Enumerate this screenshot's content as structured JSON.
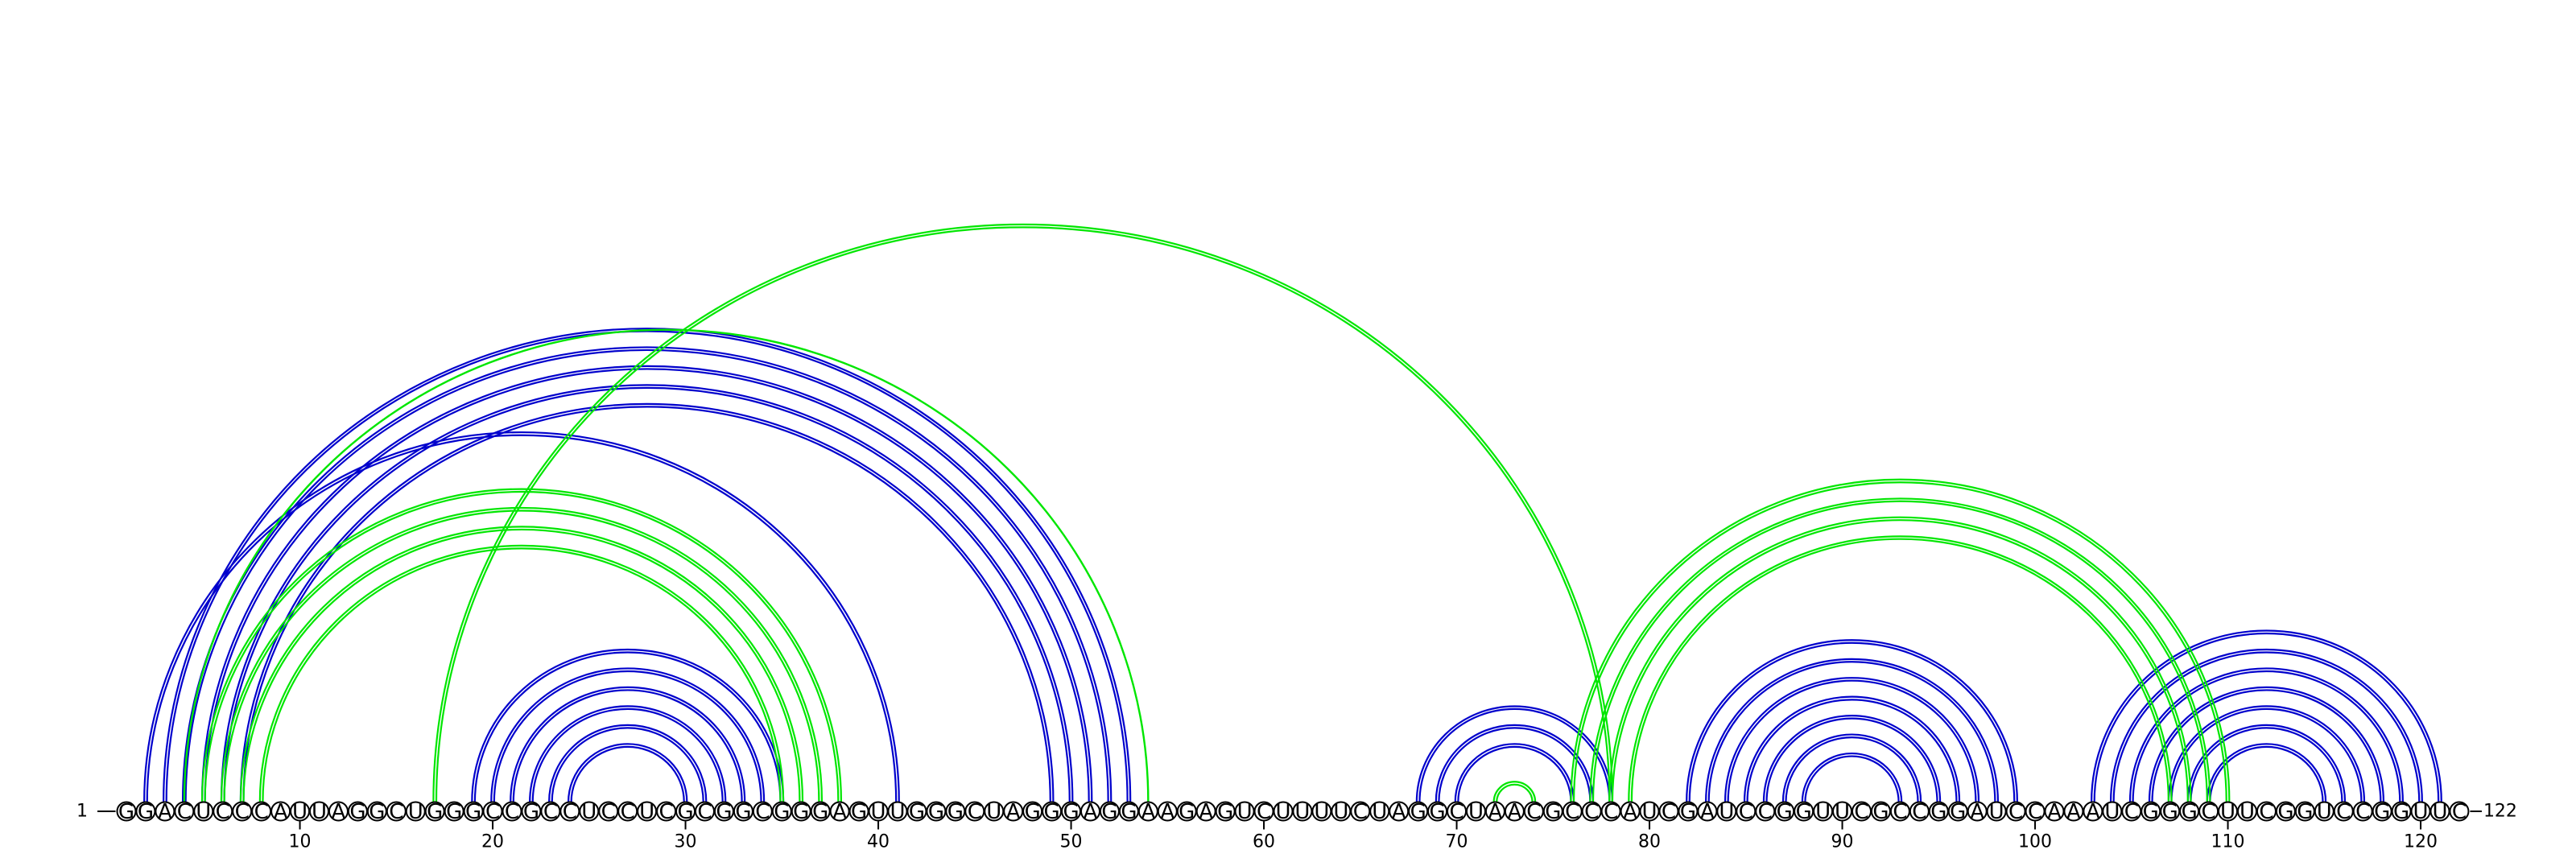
{
  "diagram": {
    "sequence": "GGACUCCCAUUAGGCUGGGCCGCCUCCUCGCGGCGGGAGUUGGGCUAGGGAGGAAGAGUCUUUUCUAGGCUAACGCCCAUCGAUCCGGUUCGCCGGAUCCAAAUCGGGCUUCGGUCCGGUUC",
    "start_label": "1",
    "end_label": "122",
    "tick_labels": [
      "10",
      "20",
      "30",
      "40",
      "50",
      "60",
      "70",
      "80",
      "90",
      "100",
      "110",
      "120"
    ],
    "tick_positions": [
      10,
      20,
      30,
      40,
      50,
      60,
      70,
      80,
      90,
      100,
      110,
      120
    ],
    "colors": {
      "helix_blue": "#0000cc",
      "helix_green": "#00e600"
    },
    "arc_groups": [
      {
        "color": "blue",
        "style": "double",
        "outer": [
          2,
          41
        ],
        "count": 1
      },
      {
        "color": "blue",
        "style": "double",
        "outer": [
          3,
          53
        ],
        "count": 5
      },
      {
        "color": "green",
        "style": "single",
        "outer": [
          4,
          54
        ],
        "count": 1
      },
      {
        "color": "green",
        "style": "double",
        "outer": [
          5,
          38
        ],
        "count": 4
      },
      {
        "color": "green",
        "style": "double",
        "outer": [
          17,
          78
        ],
        "count": 1
      },
      {
        "color": "blue",
        "style": "double",
        "outer": [
          19,
          35
        ],
        "count": 6
      },
      {
        "color": "blue",
        "style": "double",
        "outer": [
          68,
          78
        ],
        "count": 3
      },
      {
        "color": "green",
        "style": "double",
        "outer": [
          72,
          74
        ],
        "count": 1
      },
      {
        "color": "green",
        "style": "double",
        "outer": [
          76,
          110
        ],
        "count": 4
      },
      {
        "color": "blue",
        "style": "double",
        "outer": [
          82,
          99
        ],
        "count": 7
      },
      {
        "color": "blue",
        "style": "double",
        "outer": [
          103,
          121
        ],
        "count": 7
      }
    ]
  }
}
